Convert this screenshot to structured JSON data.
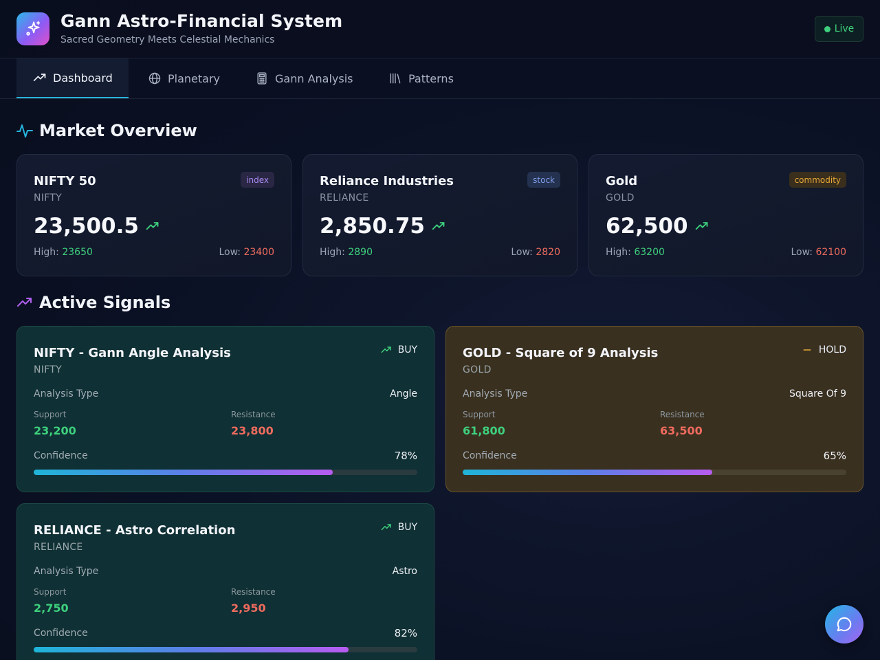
{
  "header": {
    "title": "Gann Astro-Financial System",
    "subtitle": "Sacred Geometry Meets Celestial Mechanics",
    "status": "Live",
    "logo_icon": "sparkles-icon"
  },
  "tabs": [
    {
      "label": "Dashboard",
      "icon": "trending-up-icon",
      "active": true
    },
    {
      "label": "Planetary",
      "icon": "globe-icon",
      "active": false
    },
    {
      "label": "Gann Analysis",
      "icon": "calculator-icon",
      "active": false
    },
    {
      "label": "Patterns",
      "icon": "library-icon",
      "active": false
    }
  ],
  "market_overview": {
    "title": "Market Overview",
    "cards": [
      {
        "name": "NIFTY 50",
        "symbol": "NIFTY",
        "type": "index",
        "price": "23,500.5",
        "high_label": "High:",
        "high": "23650",
        "low_label": "Low:",
        "low": "23400"
      },
      {
        "name": "Reliance Industries",
        "symbol": "RELIANCE",
        "type": "stock",
        "price": "2,850.75",
        "high_label": "High:",
        "high": "2890",
        "low_label": "Low:",
        "low": "2820"
      },
      {
        "name": "Gold",
        "symbol": "GOLD",
        "type": "commodity",
        "price": "62,500",
        "high_label": "High:",
        "high": "63200",
        "low_label": "Low:",
        "low": "62100"
      }
    ]
  },
  "active_signals": {
    "title": "Active Signals",
    "signals": [
      {
        "title": "NIFTY - Gann Angle Analysis",
        "symbol": "NIFTY",
        "action": "BUY",
        "analysis_type_label": "Analysis Type",
        "analysis_type": "Angle",
        "support_label": "Support",
        "support": "23,200",
        "resistance_label": "Resistance",
        "resistance": "23,800",
        "confidence_label": "Confidence",
        "confidence": "78%",
        "confidence_value": 78
      },
      {
        "title": "GOLD - Square of 9 Analysis",
        "symbol": "GOLD",
        "action": "HOLD",
        "analysis_type_label": "Analysis Type",
        "analysis_type": "Square Of 9",
        "support_label": "Support",
        "support": "61,800",
        "resistance_label": "Resistance",
        "resistance": "63,500",
        "confidence_label": "Confidence",
        "confidence": "65%",
        "confidence_value": 65
      },
      {
        "title": "RELIANCE - Astro Correlation",
        "symbol": "RELIANCE",
        "action": "BUY",
        "analysis_type_label": "Analysis Type",
        "analysis_type": "Astro",
        "support_label": "Support",
        "support": "2,750",
        "resistance_label": "Resistance",
        "resistance": "2,950",
        "confidence_label": "Confidence",
        "confidence": "82%",
        "confidence_value": 82
      }
    ]
  },
  "colors": {
    "accent": "#27b5dc",
    "up": "#3ed07d",
    "down": "#ef6b5e",
    "buy_card": "#0f3034",
    "hold_card": "#3a3020"
  }
}
